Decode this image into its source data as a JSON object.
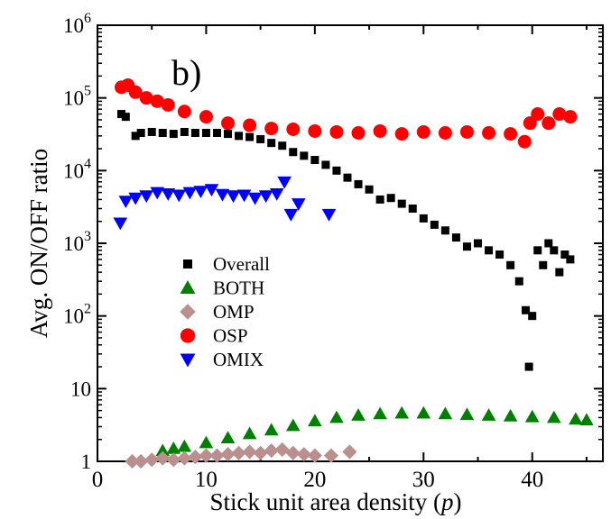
{
  "chart_data": {
    "type": "scatter",
    "panel_label": "b)",
    "xlabel_main": "Stick unit area density (",
    "xlabel_var": "p",
    "xlabel_end": ")",
    "ylabel": "Avg. ON/OFF ratio",
    "xlim": [
      0,
      46.5
    ],
    "ylim": [
      1,
      1000000
    ],
    "y_scale": "log",
    "x_ticks": [
      0,
      10,
      20,
      30,
      40
    ],
    "y_ticks": [
      {
        "value": 1,
        "base": "1",
        "exp": ""
      },
      {
        "value": 10,
        "base": "10",
        "exp": ""
      },
      {
        "value": 100,
        "base": "10",
        "exp": "2"
      },
      {
        "value": 1000,
        "base": "10",
        "exp": "3"
      },
      {
        "value": 10000,
        "base": "10",
        "exp": "4"
      },
      {
        "value": 100000,
        "base": "10",
        "exp": "5"
      },
      {
        "value": 1000000,
        "base": "10",
        "exp": "6"
      }
    ],
    "grid": false,
    "legend_position": "lower-left",
    "series": [
      {
        "name": "Overall",
        "marker": "square",
        "color": "#000000",
        "x": [
          2.2,
          2.6,
          3.5,
          4.0,
          5.0,
          6.0,
          7.0,
          8.0,
          9.0,
          10.0,
          11.0,
          12.0,
          13.0,
          14.0,
          15.0,
          16.0,
          17.0,
          18.0,
          19.0,
          20.0,
          21.0,
          22.0,
          23.0,
          24.0,
          25.0,
          26.0,
          27.0,
          28.0,
          29.0,
          30.0,
          31.0,
          32.0,
          33.0,
          34.0,
          35.0,
          36.0,
          37.0,
          38.0,
          38.8,
          39.4,
          39.7,
          40.0,
          40.5,
          41.0,
          41.5,
          42.0,
          42.5,
          43.0,
          43.5
        ],
        "y": [
          60000,
          55000,
          30000,
          33000,
          34000,
          33000,
          32000,
          34000,
          33000,
          33000,
          33000,
          32000,
          30000,
          29000,
          27000,
          24000,
          22000,
          18000,
          16000,
          14000,
          12000,
          10000,
          8000,
          6500,
          5500,
          4000,
          4200,
          3500,
          3000,
          2200,
          1800,
          1500,
          1200,
          900,
          1000,
          800,
          700,
          500,
          300,
          120,
          20,
          100,
          800,
          500,
          1000,
          800,
          400,
          700,
          600
        ]
      },
      {
        "name": "BOTH",
        "marker": "triangle-up",
        "color": "#008000",
        "x": [
          6,
          7,
          8,
          10,
          12,
          14,
          16,
          18,
          20,
          22,
          24,
          26,
          28,
          30,
          32,
          34,
          36,
          38,
          40,
          42,
          44,
          45
        ],
        "y": [
          1.4,
          1.5,
          1.6,
          1.8,
          2.1,
          2.4,
          2.7,
          3.1,
          3.6,
          4.0,
          4.3,
          4.5,
          4.6,
          4.6,
          4.5,
          4.4,
          4.3,
          4.2,
          4.1,
          4.0,
          3.8,
          3.7
        ]
      },
      {
        "name": "OMP",
        "marker": "diamond",
        "color": "#bc8f8f",
        "x": [
          3.2,
          4,
          5,
          6,
          7,
          8,
          9,
          10,
          11,
          12,
          13,
          14,
          15,
          16,
          17,
          18,
          19,
          20,
          21.5,
          23.2
        ],
        "y": [
          1.0,
          1.0,
          1.05,
          1.1,
          1.05,
          1.1,
          1.15,
          1.2,
          1.2,
          1.25,
          1.3,
          1.35,
          1.3,
          1.4,
          1.45,
          1.3,
          1.25,
          1.2,
          1.2,
          1.35
        ]
      },
      {
        "name": "OSP",
        "marker": "circle",
        "color": "#ff0000",
        "x": [
          2.2,
          2.8,
          3.5,
          4.5,
          5.5,
          6.5,
          8,
          10,
          12,
          14,
          16,
          18,
          20,
          22,
          24,
          26,
          28,
          30,
          32,
          34,
          36,
          38,
          39.3,
          39.8,
          40.5,
          41.5,
          42.5,
          43.5
        ],
        "y": [
          140000,
          150000,
          120000,
          100000,
          90000,
          80000,
          65000,
          55000,
          45000,
          42000,
          38000,
          37000,
          35000,
          34000,
          33000,
          35000,
          32000,
          34000,
          33000,
          34000,
          33000,
          32000,
          25000,
          45000,
          60000,
          45000,
          60000,
          55000
        ]
      },
      {
        "name": "OMIX",
        "marker": "triangle-down",
        "color": "#0000ff",
        "x": [
          2.1,
          2.6,
          3.5,
          4.5,
          5.5,
          6.5,
          7.5,
          8.5,
          9.5,
          10.5,
          11.5,
          12.5,
          13.5,
          14.5,
          15.5,
          16.5,
          17.2,
          17.8,
          18.5,
          21.3
        ],
        "y": [
          1900,
          3800,
          4200,
          4500,
          5000,
          4800,
          4600,
          5000,
          5200,
          5500,
          4700,
          4500,
          4600,
          4200,
          4500,
          4800,
          7000,
          2500,
          3500,
          2500
        ]
      }
    ]
  }
}
